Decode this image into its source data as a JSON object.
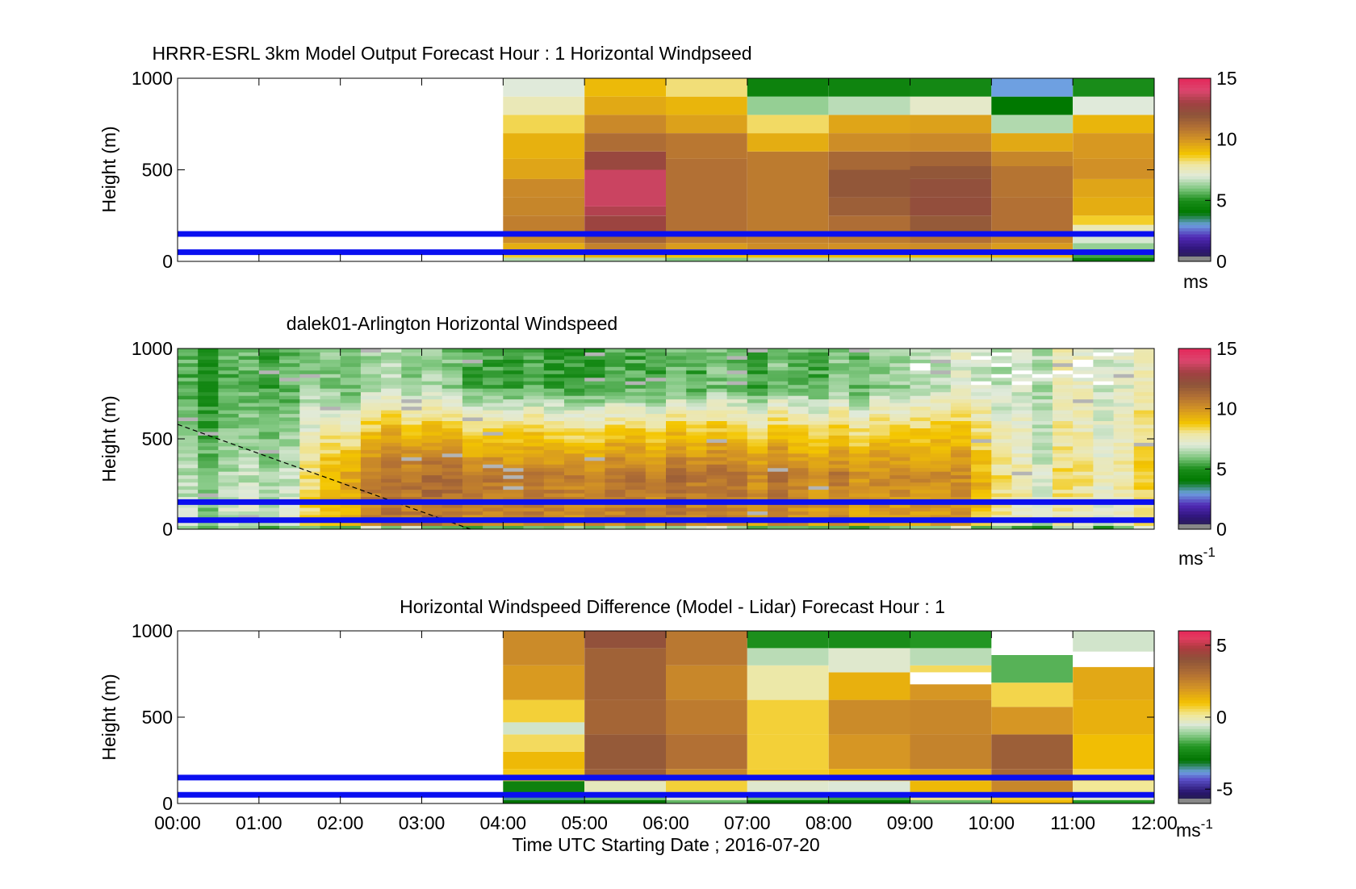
{
  "chart_data": [
    {
      "type": "heatmap",
      "title": "HRRR-ESRL 3km Model Output   Forecast Hour : 1 Horizontal Windpseed",
      "ylabel": "Height (m)",
      "xlim": [
        0,
        12
      ],
      "ylim": [
        0,
        1000
      ],
      "yticks": [
        0,
        500,
        1000
      ],
      "ytick_labels": [
        "0",
        "500",
        "1000"
      ],
      "clim": [
        0,
        15
      ],
      "cticks": [
        0,
        5,
        10,
        15
      ],
      "ctick_labels": [
        "0",
        "5",
        "10",
        "15"
      ],
      "colorbar_label": "ms",
      "colorbar_label_sup": "",
      "colormap": "windspeed",
      "reference_lines_m": [
        150,
        50
      ],
      "reference_line_color": "#0a0ff0",
      "columns": [
        {
          "t0": 4,
          "t1": 5,
          "levels": [
            [
              0,
              20,
              6.5
            ],
            [
              20,
              50,
              8.6
            ],
            [
              50,
              100,
              9.4
            ],
            [
              100,
              150,
              10.2
            ],
            [
              150,
              250,
              10.6
            ],
            [
              250,
              350,
              10.4
            ],
            [
              350,
              450,
              10.3
            ],
            [
              450,
              560,
              9.6
            ],
            [
              560,
              700,
              9.3
            ],
            [
              700,
              800,
              8.4
            ],
            [
              800,
              900,
              7.6
            ],
            [
              900,
              1000,
              7.0
            ]
          ]
        },
        {
          "t0": 5,
          "t1": 6,
          "levels": [
            [
              0,
              20,
              6.5
            ],
            [
              20,
              50,
              9.2
            ],
            [
              50,
              100,
              10.5
            ],
            [
              100,
              150,
              11.4
            ],
            [
              150,
              250,
              12.8
            ],
            [
              250,
              300,
              13.3
            ],
            [
              300,
              500,
              13.7
            ],
            [
              500,
              600,
              12.6
            ],
            [
              600,
              700,
              11.1
            ],
            [
              700,
              800,
              10.3
            ],
            [
              800,
              900,
              9.5
            ],
            [
              900,
              1000,
              9.1
            ]
          ]
        },
        {
          "t0": 6,
          "t1": 7,
          "levels": [
            [
              0,
              20,
              6.0
            ],
            [
              20,
              50,
              8.8
            ],
            [
              50,
              100,
              9.8
            ],
            [
              100,
              150,
              10.6
            ],
            [
              150,
              560,
              11.0
            ],
            [
              560,
              700,
              10.8
            ],
            [
              700,
              800,
              9.7
            ],
            [
              800,
              900,
              9.2
            ],
            [
              900,
              1000,
              8.2
            ]
          ]
        },
        {
          "t0": 7,
          "t1": 8,
          "levels": [
            [
              0,
              20,
              6.5
            ],
            [
              20,
              50,
              8.9
            ],
            [
              50,
              100,
              10.2
            ],
            [
              100,
              150,
              10.5
            ],
            [
              150,
              600,
              10.7
            ],
            [
              600,
              700,
              9.4
            ],
            [
              700,
              800,
              8.3
            ],
            [
              800,
              900,
              6.2
            ],
            [
              900,
              1000,
              4.5
            ]
          ]
        },
        {
          "t0": 8,
          "t1": 9,
          "levels": [
            [
              0,
              20,
              6.5
            ],
            [
              20,
              50,
              9.0
            ],
            [
              50,
              100,
              10.1
            ],
            [
              100,
              150,
              10.7
            ],
            [
              150,
              250,
              11.1
            ],
            [
              250,
              350,
              11.6
            ],
            [
              350,
              500,
              11.9
            ],
            [
              500,
              600,
              11.3
            ],
            [
              600,
              700,
              10.2
            ],
            [
              700,
              800,
              9.6
            ],
            [
              800,
              900,
              6.6
            ],
            [
              900,
              1000,
              4.6
            ]
          ]
        },
        {
          "t0": 9,
          "t1": 10,
          "levels": [
            [
              0,
              20,
              6.5
            ],
            [
              20,
              50,
              9.0
            ],
            [
              50,
              100,
              10.2
            ],
            [
              100,
              150,
              11.0
            ],
            [
              150,
              250,
              11.8
            ],
            [
              250,
              350,
              12.3
            ],
            [
              350,
              450,
              12.2
            ],
            [
              450,
              520,
              11.9
            ],
            [
              520,
              600,
              11.4
            ],
            [
              600,
              700,
              10.3
            ],
            [
              700,
              800,
              9.7
            ],
            [
              800,
              900,
              7.3
            ],
            [
              900,
              1000,
              4.8
            ]
          ]
        },
        {
          "t0": 10,
          "t1": 11,
          "levels": [
            [
              0,
              20,
              6.5
            ],
            [
              20,
              50,
              9.0
            ],
            [
              50,
              100,
              9.8
            ],
            [
              100,
              150,
              10.4
            ],
            [
              150,
              350,
              11.0
            ],
            [
              350,
              520,
              10.9
            ],
            [
              520,
              600,
              10.4
            ],
            [
              600,
              700,
              9.5
            ],
            [
              700,
              800,
              6.5
            ],
            [
              800,
              900,
              4.0
            ],
            [
              900,
              1000,
              3.0
            ]
          ]
        },
        {
          "t0": 11,
          "t1": 12,
          "levels": [
            [
              0,
              20,
              4.4
            ],
            [
              20,
              50,
              5.4
            ],
            [
              50,
              100,
              6.2
            ],
            [
              100,
              150,
              6.9
            ],
            [
              150,
              200,
              7.6
            ],
            [
              200,
              250,
              8.6
            ],
            [
              250,
              350,
              9.4
            ],
            [
              350,
              450,
              9.6
            ],
            [
              450,
              560,
              10.1
            ],
            [
              560,
              700,
              9.9
            ],
            [
              700,
              800,
              9.2
            ],
            [
              800,
              900,
              7.0
            ],
            [
              900,
              1000,
              5.0
            ]
          ]
        }
      ]
    },
    {
      "type": "heatmap",
      "title": "dalek01-Arlington  Horizontal Windspeed",
      "ylabel": "Height (m)",
      "xlim": [
        0,
        12
      ],
      "ylim": [
        0,
        1000
      ],
      "yticks": [
        0,
        500,
        1000
      ],
      "ytick_labels": [
        "0",
        "500",
        "1000"
      ],
      "clim": [
        0,
        15
      ],
      "cticks": [
        0,
        5,
        10,
        15
      ],
      "ctick_labels": [
        "0",
        "5",
        "10",
        "15"
      ],
      "colorbar_label": "ms",
      "colorbar_label_sup": "-1",
      "colormap": "windspeed",
      "reference_lines_m": [
        150,
        50
      ],
      "reference_line_color": "#0a0ff0",
      "time_step_h": 0.25,
      "data_end_h": 11.85,
      "lidar_profile_hint": [
        {
          "t": 0.0,
          "jet_m": 0,
          "peak": 6.6,
          "top": 5.4
        },
        {
          "t": 1.3,
          "jet_m": 0,
          "peak": 6.8,
          "top": 5.6
        },
        {
          "t": 1.8,
          "jet_m": 300,
          "peak": 9.0,
          "top": 6.2
        },
        {
          "t": 2.5,
          "jet_m": 300,
          "peak": 10.5,
          "top": 6.0
        },
        {
          "t": 4.0,
          "jet_m": 280,
          "peak": 11.0,
          "top": 5.8
        },
        {
          "t": 6.0,
          "jet_m": 300,
          "peak": 10.6,
          "top": 5.5
        },
        {
          "t": 8.0,
          "jet_m": 300,
          "peak": 10.2,
          "top": 5.8
        },
        {
          "t": 9.5,
          "jet_m": 300,
          "peak": 9.8,
          "top": 6.6
        },
        {
          "t": 10.5,
          "jet_m": 300,
          "peak": 7.4,
          "top": 7.0
        },
        {
          "t": 11.85,
          "jet_m": 400,
          "peak": 7.8,
          "top": 7.2
        }
      ],
      "dashed_line": {
        "from": {
          "t": 0.0,
          "m": 580
        },
        "to": {
          "t": 3.6,
          "m": 0
        }
      }
    },
    {
      "type": "heatmap",
      "title": "Horizontal Windspeed Difference (Model - Lidar) Forecast Hour : 1",
      "ylabel": "Height (m)",
      "xlabel": "Time UTC  Starting Date ; 2016-07-20",
      "xlim": [
        0,
        12
      ],
      "ylim": [
        0,
        1000
      ],
      "xticks": [
        0,
        1,
        2,
        3,
        4,
        5,
        6,
        7,
        8,
        9,
        10,
        11,
        12
      ],
      "xtick_labels": [
        "00:00",
        "01:00",
        "02:00",
        "03:00",
        "04:00",
        "05:00",
        "06:00",
        "07:00",
        "08:00",
        "09:00",
        "10:00",
        "11:00",
        "12:00"
      ],
      "yticks": [
        0,
        500,
        1000
      ],
      "ytick_labels": [
        "0",
        "500",
        "1000"
      ],
      "clim": [
        -6,
        6
      ],
      "cticks": [
        -5,
        0,
        5
      ],
      "ctick_labels": [
        "-5",
        "0",
        "5"
      ],
      "colorbar_label": "ms",
      "colorbar_label_sup": "-1",
      "colormap": "difference",
      "reference_lines_m": [
        150,
        50
      ],
      "reference_line_color": "#0a0ff0",
      "columns": [
        {
          "t0": 4,
          "t1": 5,
          "levels": [
            [
              0,
              20,
              -3.0
            ],
            [
              20,
              60,
              -3.5
            ],
            [
              60,
              130,
              -2.6
            ],
            [
              130,
              200,
              0.9
            ],
            [
              200,
              300,
              1.2
            ],
            [
              300,
              400,
              0.5
            ],
            [
              400,
              470,
              -0.6
            ],
            [
              470,
              600,
              0.7
            ],
            [
              600,
              800,
              1.9
            ],
            [
              800,
              1000,
              2.3
            ]
          ]
        },
        {
          "t0": 5,
          "t1": 6,
          "levels": [
            [
              0,
              20,
              -3.0
            ],
            [
              20,
              60,
              -1.4
            ],
            [
              60,
              130,
              -0.2
            ],
            [
              130,
              200,
              3.6
            ],
            [
              200,
              400,
              3.8
            ],
            [
              400,
              600,
              3.4
            ],
            [
              600,
              900,
              3.5
            ],
            [
              900,
              1000,
              4.1
            ]
          ]
        },
        {
          "t0": 6,
          "t1": 7,
          "levels": [
            [
              0,
              20,
              -1.5
            ],
            [
              20,
              60,
              -0.4
            ],
            [
              60,
              130,
              0.7
            ],
            [
              130,
              200,
              2.4
            ],
            [
              200,
              400,
              3.0
            ],
            [
              400,
              600,
              2.7
            ],
            [
              600,
              800,
              2.4
            ],
            [
              800,
              1000,
              2.8
            ]
          ]
        },
        {
          "t0": 7,
          "t1": 8,
          "levels": [
            [
              0,
              20,
              -3.0
            ],
            [
              20,
              60,
              -1.4
            ],
            [
              60,
              130,
              -0.4
            ],
            [
              130,
              200,
              0.8
            ],
            [
              200,
              400,
              0.7
            ],
            [
              400,
              600,
              0.7
            ],
            [
              600,
              800,
              0.0
            ],
            [
              800,
              900,
              -0.8
            ],
            [
              900,
              1000,
              -2.2
            ]
          ]
        },
        {
          "t0": 8,
          "t1": 9,
          "levels": [
            [
              0,
              20,
              -3.0
            ],
            [
              20,
              60,
              -1.8
            ],
            [
              60,
              130,
              -0.5
            ],
            [
              130,
              200,
              1.2
            ],
            [
              200,
              400,
              2.0
            ],
            [
              400,
              600,
              2.3
            ],
            [
              600,
              760,
              1.4
            ],
            [
              760,
              900,
              -0.4
            ],
            [
              900,
              1000,
              -2.3
            ]
          ]
        },
        {
          "t0": 9,
          "t1": 10,
          "levels": [
            [
              0,
              20,
              -1.5
            ],
            [
              20,
              60,
              0.3
            ],
            [
              60,
              130,
              1.2
            ],
            [
              130,
              200,
              1.6
            ],
            [
              200,
              400,
              2.5
            ],
            [
              400,
              600,
              2.4
            ],
            [
              600,
              690,
              2.0
            ],
            [
              690,
              760,
              null
            ],
            [
              760,
              800,
              0.5
            ],
            [
              800,
              900,
              -0.8
            ],
            [
              900,
              1000,
              -2.0
            ]
          ]
        },
        {
          "t0": 10,
          "t1": 11,
          "levels": [
            [
              0,
              20,
              1.2
            ],
            [
              20,
              60,
              0.8
            ],
            [
              60,
              130,
              2.4
            ],
            [
              130,
              200,
              3.3
            ],
            [
              200,
              400,
              3.6
            ],
            [
              400,
              560,
              2.0
            ],
            [
              560,
              700,
              0.6
            ],
            [
              700,
              860,
              -1.6
            ],
            [
              860,
              1000,
              null
            ]
          ]
        },
        {
          "t0": 11,
          "t1": 12,
          "levels": [
            [
              0,
              20,
              -2.0
            ],
            [
              20,
              60,
              -0.4
            ],
            [
              60,
              130,
              0.2
            ],
            [
              130,
              200,
              0.6
            ],
            [
              200,
              400,
              1.1
            ],
            [
              400,
              600,
              1.4
            ],
            [
              600,
              790,
              1.6
            ],
            [
              790,
              880,
              null
            ],
            [
              880,
              1000,
              -0.6
            ]
          ]
        }
      ]
    }
  ]
}
